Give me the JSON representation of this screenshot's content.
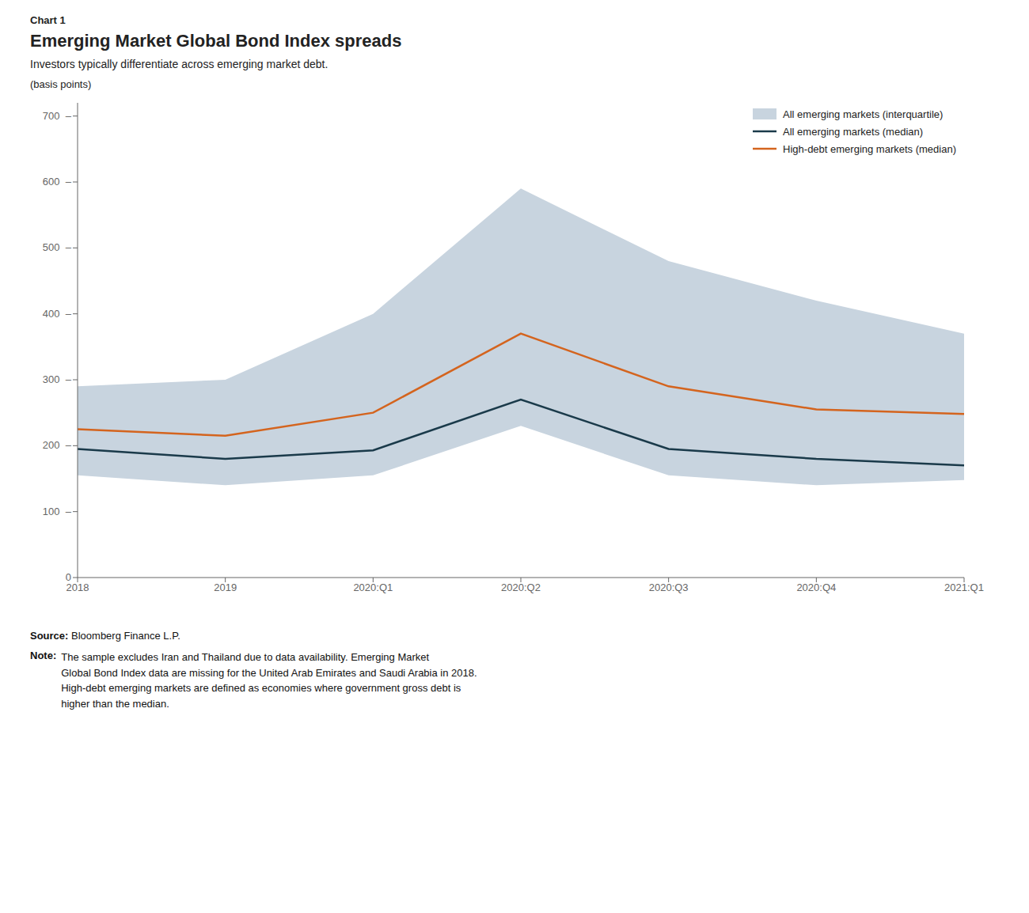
{
  "chart_data": {
    "type": "line",
    "title": "Emerging Market Global Bond Index spreads",
    "subtitle": "Investors typically differentiate across emerging market debt.",
    "ylabel": "(basis points)",
    "annotations": {
      "label": "Chart 1",
      "source": [
        "Source:",
        "Bloomberg Finance L.P."
      ],
      "note": [
        "Note:",
        "The sample excludes Iran and Thailand due to data availability. Emerging Market\nGlobal Bond Index data are missing for the United Arab Emirates and Saudi Arabia in 2018.\nHigh-debt emerging markets are defined as economies where government gross debt is\nhigher than the median."
      ]
    },
    "categories": [
      "2018",
      "2019",
      "2020:Q1",
      "2020:Q2",
      "2020:Q3",
      "2020:Q4",
      "2021:Q1"
    ],
    "series": [
      {
        "name": "All emerging markets (interquartile)",
        "type": "area",
        "color": "#c8d4df",
        "lower": [
          155,
          140,
          155,
          230,
          155,
          140,
          148
        ],
        "upper": [
          290,
          300,
          400,
          590,
          480,
          420,
          370
        ]
      },
      {
        "name": "All emerging markets (median)",
        "type": "line",
        "color": "#1a3a4a",
        "values": [
          195,
          180,
          193,
          270,
          195,
          180,
          170
        ]
      },
      {
        "name": "High-debt emerging markets (median)",
        "type": "line",
        "color": "#d4641e",
        "values": [
          225,
          215,
          250,
          370,
          290,
          255,
          248
        ]
      }
    ],
    "ylim": [
      0,
      720
    ],
    "yticks": [
      0,
      {
        "value": 100,
        "label": "100  –"
      },
      {
        "value": 200,
        "label": "200  –"
      },
      {
        "value": 300,
        "label": "300  –"
      },
      {
        "value": 400,
        "label": "400  –"
      },
      {
        "value": 500,
        "label": "500  –"
      },
      {
        "value": 600,
        "label": "600  –"
      },
      {
        "value": 700,
        "label": "700  –"
      }
    ],
    "grid": false,
    "legend": "upper right"
  }
}
